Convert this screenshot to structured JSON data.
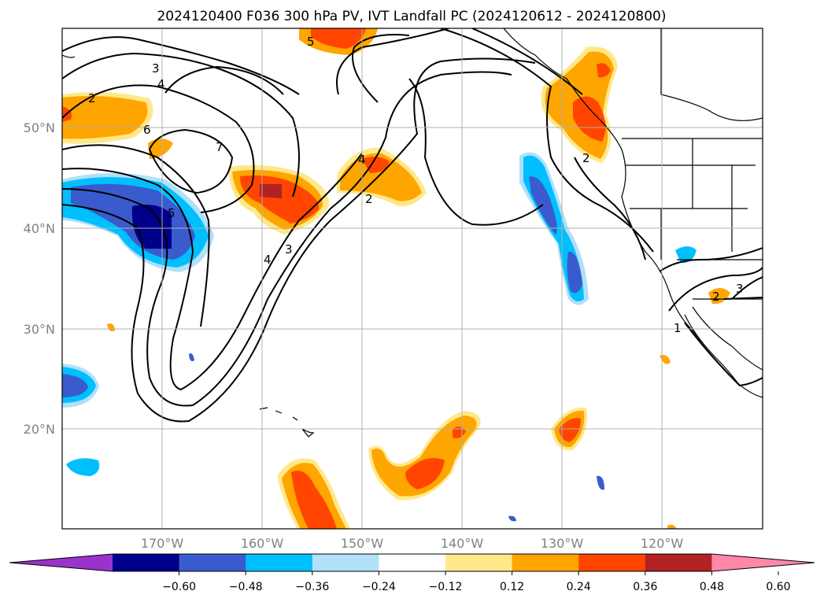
{
  "title": "2024120400 F036 300 hPa PV, IVT Landfall PC (2024120612 - 2024120800)",
  "map": {
    "lon_range": [
      -180,
      -110
    ],
    "lat_range": [
      10,
      60
    ],
    "lat_ticks": [
      {
        "value": 50,
        "label": "50°N"
      },
      {
        "value": 40,
        "label": "40°N"
      },
      {
        "value": 30,
        "label": "30°N"
      },
      {
        "value": 20,
        "label": "20°N"
      }
    ],
    "lon_ticks": [
      {
        "value": -170,
        "label": "170°W"
      },
      {
        "value": -160,
        "label": "160°W"
      },
      {
        "value": -150,
        "label": "150°W"
      },
      {
        "value": -140,
        "label": "140°W"
      },
      {
        "value": -130,
        "label": "130°W"
      },
      {
        "value": -120,
        "label": "120°W"
      }
    ],
    "grid": true
  },
  "colorbar": {
    "colors": [
      "#9933cc",
      "#00008b",
      "#3a5bcd",
      "#00bfff",
      "#b0e0fa",
      "#ffffff",
      "#ffe88a",
      "#ffa500",
      "#ff4500",
      "#b22222",
      "#ff88aa"
    ],
    "labels": [
      "−0.60",
      "−0.48",
      "−0.36",
      "−0.24",
      "−0.12",
      "0.12",
      "0.24",
      "0.36",
      "0.48",
      "0.60"
    ],
    "extend": "both"
  },
  "contour_labels": [
    "3",
    "4",
    "6",
    "7",
    "5",
    "2",
    "3",
    "4",
    "2",
    "5",
    "4",
    "2",
    "1",
    "3",
    "2"
  ],
  "legend": {
    "colors": {
      "neg_strong": "#00008b",
      "neg": "#3a5bcd",
      "neg_light": "#00bfff",
      "pos_light": "#ffe88a",
      "pos": "#ffa500",
      "pos_strong": "#ff4500",
      "pos_max": "#b22222"
    }
  }
}
